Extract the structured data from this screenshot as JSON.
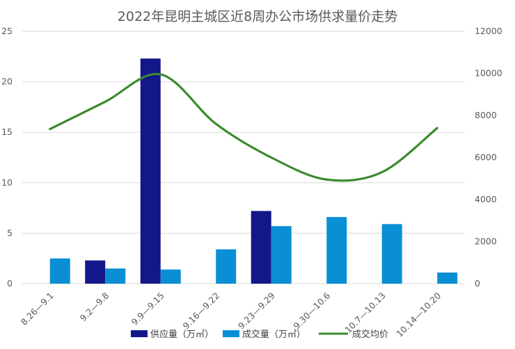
{
  "chart_data": {
    "type": "bar",
    "title": "2022年昆明主城区近8周办公市场供求量价走势",
    "categories": [
      "8.26—9.1",
      "9.2—9.8",
      "9.9—9.15",
      "9.16—9.22",
      "9.23—9.29",
      "9.30—10.6",
      "10.7—10.13",
      "10.14—10.20"
    ],
    "series": [
      {
        "name": "供应量（万㎡）",
        "type": "bar",
        "axis": "left",
        "color": "#13178a",
        "values": [
          0,
          2.3,
          22.3,
          0,
          7.2,
          0,
          0,
          0
        ]
      },
      {
        "name": "成交量（万㎡）",
        "type": "bar",
        "axis": "left",
        "color": "#0b8fd4",
        "values": [
          2.5,
          1.5,
          1.4,
          3.4,
          5.7,
          6.6,
          5.9,
          1.1
        ]
      },
      {
        "name": "成交均价",
        "type": "line",
        "axis": "right",
        "smooth": true,
        "color": "#3a8a2c",
        "values": [
          7350,
          8650,
          9950,
          7600,
          6000,
          4950,
          5300,
          7400
        ]
      }
    ],
    "y_left": {
      "min": 0,
      "max": 25,
      "ticks": [
        "0",
        "5",
        "10",
        "15",
        "20",
        "25"
      ]
    },
    "y_right": {
      "min": 0,
      "max": 12000,
      "ticks": [
        "0",
        "2000",
        "4000",
        "6000",
        "8000",
        "10000",
        "12000"
      ]
    },
    "grid": true,
    "legend_position": "bottom"
  }
}
